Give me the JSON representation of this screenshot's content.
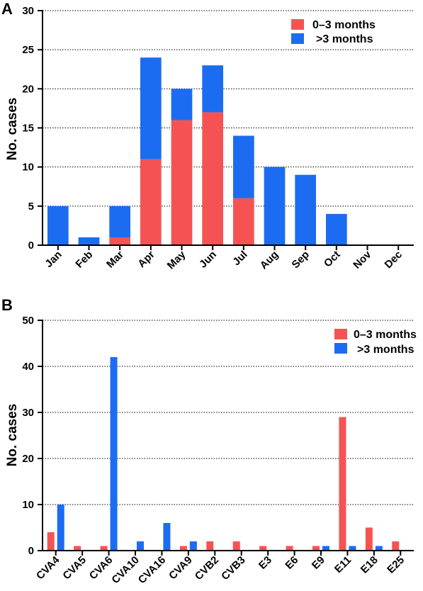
{
  "colors": {
    "series_0_3": "#f55353",
    "series_gt3": "#1c6cf2",
    "axis": "#000000"
  },
  "chart_data": [
    {
      "panel": "A",
      "type": "bar",
      "stacked": true,
      "ylabel": "No. cases",
      "xlabel": "",
      "ylim": [
        0,
        30
      ],
      "yticks": [
        0,
        5,
        10,
        15,
        20,
        25,
        30
      ],
      "grid": "horizontal dotted",
      "legend_position": "top-right",
      "categories": [
        "Jan",
        "Feb",
        "Mar",
        "Apr",
        "May",
        "Jun",
        "Jul",
        "Aug",
        "Sep",
        "Oct",
        "Nov",
        "Dec"
      ],
      "series": [
        {
          "name": "0–3 months",
          "values": [
            0,
            0,
            1,
            11,
            16,
            17,
            6,
            0,
            0,
            0,
            0,
            0
          ]
        },
        {
          "name": ">3 months",
          "values": [
            5,
            1,
            4,
            13,
            4,
            6,
            8,
            10,
            9,
            4,
            0,
            0
          ]
        }
      ]
    },
    {
      "panel": "B",
      "type": "bar",
      "stacked": false,
      "ylabel": "No. cases",
      "xlabel": "",
      "ylim": [
        0,
        50
      ],
      "yticks": [
        0,
        10,
        20,
        30,
        40,
        50
      ],
      "grid": "horizontal dotted",
      "legend_position": "top-right",
      "categories": [
        "CVA4",
        "CVA5",
        "CVA6",
        "CVA10",
        "CVA16",
        "CVA9",
        "CVB2",
        "CVB3",
        "E3",
        "E6",
        "E9",
        "E11",
        "E18",
        "E25"
      ],
      "series": [
        {
          "name": "0–3 months",
          "values": [
            4,
            1,
            1,
            0,
            0,
            1,
            2,
            2,
            1,
            1,
            1,
            29,
            5,
            2
          ]
        },
        {
          "name": ">3 months",
          "values": [
            10,
            0,
            42,
            2,
            6,
            2,
            0,
            0,
            0,
            0,
            1,
            1,
            1,
            0
          ]
        }
      ]
    }
  ]
}
